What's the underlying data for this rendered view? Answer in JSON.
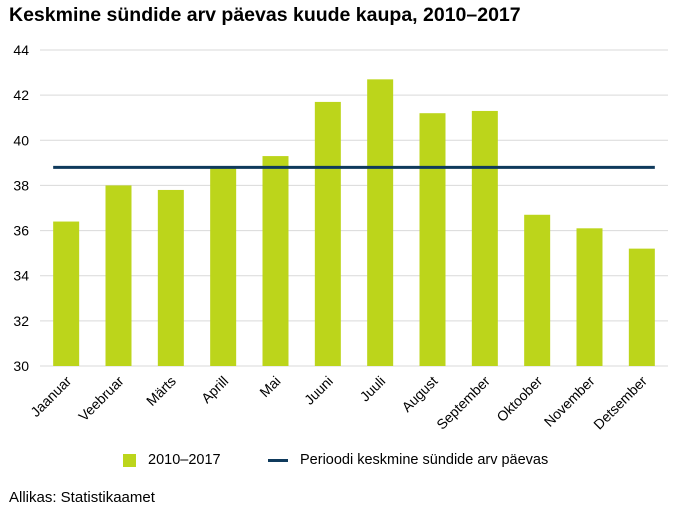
{
  "colors": {
    "bar": "#bcd51b",
    "line": "#0f3a5c",
    "grid": "#d9d9d9"
  },
  "legend": {
    "series_label": "2010–2017",
    "line_label": "Perioodi keskmine sündide arv päevas"
  },
  "source": "Allikas: Statistikaamet",
  "chart_data": {
    "type": "bar",
    "title": "Keskmine sündide arv päevas kuude kaupa, 2010–2017",
    "categories": [
      "Jaanuar",
      "Veebruar",
      "Märts",
      "Aprill",
      "Mai",
      "Juuni",
      "Juuli",
      "August",
      "September",
      "Oktoober",
      "November",
      "Detsember"
    ],
    "series": [
      {
        "name": "2010–2017",
        "values": [
          36.4,
          38.0,
          37.8,
          38.8,
          39.3,
          41.7,
          42.7,
          41.2,
          41.3,
          36.7,
          36.1,
          35.2
        ]
      }
    ],
    "average": {
      "name": "Perioodi keskmine sündide arv päevas",
      "value": 38.8
    },
    "ylim": [
      30,
      44
    ],
    "yticks": [
      30,
      32,
      34,
      36,
      38,
      40,
      42,
      44
    ],
    "xlabel": "",
    "ylabel": "",
    "grid": true,
    "legend_position": "bottom"
  }
}
